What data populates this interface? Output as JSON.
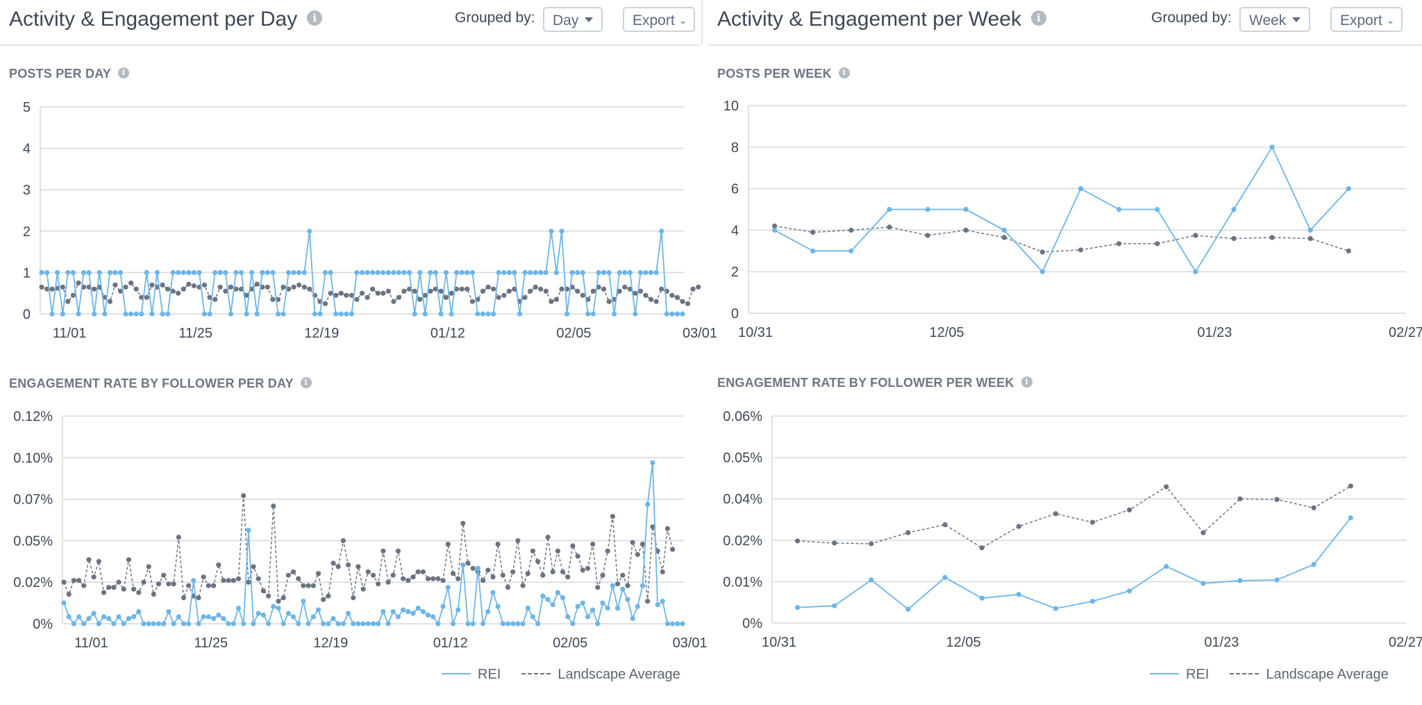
{
  "colors": {
    "rei": "#6db5e8",
    "average": "#6b7381",
    "grid": "#d5d9de",
    "axis_text": "#3d4756"
  },
  "icons": {
    "info": "info-icon",
    "caret": "caret-down-icon",
    "chevron": "chevron-down-icon"
  },
  "left": {
    "title": "Activity & Engagement per Day",
    "grouped_label": "Grouped by:",
    "grouped_value": "Day",
    "export_label": "Export"
  },
  "right": {
    "title": "Activity & Engagement per Week",
    "grouped_label": "Grouped by:",
    "grouped_value": "Week",
    "export_label": "Export"
  },
  "legend": {
    "rei": "REI",
    "average": "Landscape Average"
  },
  "chart_data": [
    {
      "id": "posts-day",
      "type": "line",
      "title": "POSTS PER DAY",
      "ylim": [
        0,
        5
      ],
      "yticks": [
        "0",
        "1",
        "2",
        "3",
        "4",
        "5"
      ],
      "ytick_values": [
        0,
        1,
        2,
        3,
        4,
        5
      ],
      "x_tick_labels": [
        "11/01",
        "11/25",
        "12/19",
        "01/12",
        "02/05",
        "03/01"
      ],
      "x_tick_index": [
        2,
        26,
        50,
        74,
        98,
        122
      ],
      "series": [
        {
          "name": "REI",
          "values": [
            1,
            1,
            0,
            1,
            0,
            1,
            1,
            0,
            1,
            1,
            0,
            1,
            0,
            1,
            1,
            1,
            0,
            0,
            0,
            0,
            1,
            0,
            1,
            0,
            0,
            1,
            1,
            1,
            1,
            1,
            1,
            0,
            0,
            1,
            1,
            1,
            0,
            1,
            1,
            0,
            1,
            0,
            1,
            1,
            1,
            0,
            0,
            1,
            1,
            1,
            1,
            2,
            0,
            0,
            1,
            1,
            0,
            0,
            0,
            0,
            1,
            1,
            1,
            1,
            1,
            1,
            1,
            1,
            1,
            1,
            1,
            0,
            1,
            0,
            1,
            1,
            0,
            1,
            0,
            1,
            1,
            1,
            1,
            0,
            0,
            0,
            0,
            1,
            1,
            1,
            1,
            0,
            1,
            1,
            1,
            1,
            1,
            2,
            1,
            2,
            0,
            1,
            1,
            1,
            0,
            0,
            1,
            1,
            1,
            0,
            1,
            1,
            1,
            0,
            1,
            1,
            1,
            1,
            2,
            0,
            0,
            0,
            0
          ]
        },
        {
          "name": "Landscape Average",
          "values": [
            0.65,
            0.6,
            0.6,
            0.62,
            0.65,
            0.3,
            0.45,
            0.75,
            0.65,
            0.65,
            0.6,
            0.65,
            0.4,
            0.3,
            0.7,
            0.55,
            0.65,
            0.75,
            0.6,
            0.4,
            0.4,
            0.7,
            0.65,
            0.7,
            0.6,
            0.55,
            0.5,
            0.6,
            0.72,
            0.68,
            0.65,
            0.7,
            0.4,
            0.35,
            0.65,
            0.55,
            0.65,
            0.6,
            0.6,
            0.45,
            0.6,
            0.72,
            0.65,
            0.65,
            0.35,
            0.35,
            0.65,
            0.6,
            0.65,
            0.7,
            0.65,
            0.6,
            0.45,
            0.3,
            0.25,
            0.5,
            0.45,
            0.5,
            0.45,
            0.45,
            0.35,
            0.5,
            0.4,
            0.6,
            0.5,
            0.5,
            0.55,
            0.3,
            0.4,
            0.55,
            0.6,
            0.55,
            0.35,
            0.45,
            0.55,
            0.6,
            0.55,
            0.4,
            0.5,
            0.6,
            0.6,
            0.6,
            0.3,
            0.35,
            0.55,
            0.65,
            0.6,
            0.4,
            0.45,
            0.55,
            0.6,
            0.3,
            0.4,
            0.55,
            0.65,
            0.6,
            0.55,
            0.3,
            0.35,
            0.6,
            0.6,
            0.65,
            0.55,
            0.45,
            0.35,
            0.55,
            0.65,
            0.6,
            0.3,
            0.35,
            0.55,
            0.65,
            0.6,
            0.5,
            0.55,
            0.45,
            0.35,
            0.3,
            0.6,
            0.55,
            0.45,
            0.4,
            0.3,
            0.25,
            0.6,
            0.65
          ]
        }
      ]
    },
    {
      "id": "posts-week",
      "type": "line",
      "title": "POSTS PER WEEK",
      "ylim": [
        0,
        10
      ],
      "yticks": [
        "0",
        "2",
        "4",
        "6",
        "8",
        "10"
      ],
      "ytick_values": [
        0,
        2,
        4,
        6,
        8,
        10
      ],
      "x_tick_labels": [
        "10/31",
        "12/05",
        "01/23",
        "02/27"
      ],
      "x_tick_pos": [
        0,
        5,
        12,
        17
      ],
      "x_range": [
        0,
        17
      ],
      "series": [
        {
          "name": "REI",
          "x": [
            0.5,
            1.5,
            2.5,
            3.5,
            4.5,
            5.5,
            6.5,
            7.5,
            8.5,
            9.5,
            10.5,
            11.5,
            12.5,
            13.5,
            14.5,
            15.5
          ],
          "values": [
            4,
            3,
            3,
            5,
            5,
            5,
            4,
            2,
            6,
            5,
            5,
            2,
            5,
            8,
            4,
            6
          ]
        },
        {
          "name": "Landscape Average",
          "x": [
            0.5,
            1.5,
            2.5,
            3.5,
            4.5,
            5.5,
            6.5,
            7.5,
            8.5,
            9.5,
            10.5,
            11.5,
            12.5,
            13.5,
            14.5,
            15.5
          ],
          "values": [
            4.2,
            3.9,
            4.0,
            4.15,
            3.75,
            4.0,
            3.65,
            2.95,
            3.05,
            3.35,
            3.35,
            3.75,
            3.6,
            3.65,
            3.6,
            3.0
          ]
        }
      ]
    },
    {
      "id": "eng-day",
      "type": "line",
      "title": "ENGAGEMENT RATE BY FOLLOWER PER DAY",
      "ylim": [
        0,
        0.12
      ],
      "yticks": [
        "0%",
        "0.02%",
        "0.05%",
        "0.07%",
        "0.10%",
        "0.12%"
      ],
      "ytick_values": [
        0,
        0.024,
        0.048,
        0.072,
        0.096,
        0.12
      ],
      "x_tick_labels": [
        "11/01",
        "11/25",
        "12/19",
        "01/12",
        "02/05",
        "03/01"
      ],
      "x_tick_index": [
        2,
        26,
        50,
        74,
        98,
        122
      ],
      "series": [
        {
          "name": "REI",
          "values": [
            0.012,
            0.004,
            0,
            0.004,
            0,
            0.003,
            0.006,
            0,
            0.004,
            0.003,
            0,
            0.004,
            0,
            0.003,
            0.004,
            0.007,
            0,
            0,
            0,
            0,
            0,
            0.007,
            0,
            0.004,
            0,
            0,
            0.025,
            0,
            0.004,
            0.004,
            0.003,
            0.005,
            0.003,
            0,
            0,
            0.009,
            0,
            0.054,
            0,
            0.006,
            0.005,
            0,
            0.01,
            0.009,
            0,
            0.006,
            0.004,
            0,
            0.013,
            0,
            0.004,
            0.008,
            0,
            0,
            0.003,
            0,
            0,
            0.006,
            0,
            0,
            0,
            0,
            0,
            0,
            0.007,
            0,
            0.007,
            0.004,
            0.008,
            0.007,
            0.006,
            0.009,
            0.007,
            0.005,
            0.004,
            0,
            0.01,
            0.021,
            0,
            0.008,
            0.034,
            0,
            0,
            0.032,
            0,
            0.007,
            0.018,
            0.01,
            0,
            0,
            0,
            0,
            0,
            0.009,
            0.004,
            0,
            0.016,
            0.014,
            0.011,
            0.018,
            0.015,
            0.004,
            0,
            0.01,
            0.012,
            0.004,
            0.008,
            0,
            0.012,
            0.009,
            0.022,
            0.009,
            0.02,
            0.014,
            0.003,
            0.01,
            0.022,
            0.069,
            0.093,
            0.011,
            0.013,
            0,
            0,
            0,
            0
          ]
        },
        {
          "name": "Landscape Average",
          "values": [
            0.024,
            0.017,
            0.025,
            0.025,
            0.022,
            0.037,
            0.027,
            0.036,
            0.018,
            0.021,
            0.021,
            0.024,
            0.02,
            0.037,
            0.02,
            0.018,
            0.024,
            0.033,
            0.017,
            0.023,
            0.028,
            0.023,
            0.023,
            0.05,
            0.015,
            0.022,
            0.016,
            0.015,
            0.027,
            0.022,
            0.022,
            0.034,
            0.025,
            0.025,
            0.025,
            0.026,
            0.074,
            0.024,
            0.033,
            0.026,
            0.019,
            0.016,
            0.068,
            0.013,
            0.015,
            0.028,
            0.03,
            0.026,
            0.022,
            0.022,
            0.022,
            0.029,
            0.014,
            0.016,
            0.035,
            0.033,
            0.048,
            0.034,
            0.015,
            0.033,
            0.02,
            0.03,
            0.028,
            0.023,
            0.042,
            0.024,
            0.028,
            0.042,
            0.026,
            0.025,
            0.027,
            0.03,
            0.03,
            0.026,
            0.026,
            0.026,
            0.025,
            0.046,
            0.029,
            0.026,
            0.058,
            0.035,
            0.032,
            0.03,
            0.025,
            0.031,
            0.027,
            0.046,
            0.028,
            0.021,
            0.03,
            0.048,
            0.022,
            0.029,
            0.042,
            0.036,
            0.028,
            0.05,
            0.03,
            0.042,
            0.03,
            0.027,
            0.045,
            0.039,
            0.031,
            0.032,
            0.046,
            0.021,
            0.028,
            0.042,
            0.062,
            0.023,
            0.028,
            0.022,
            0.047,
            0.04,
            0.046,
            0.013,
            0.056,
            0.042,
            0.03,
            0.055,
            0.043
          ]
        }
      ]
    },
    {
      "id": "eng-week",
      "type": "line",
      "title": "ENGAGEMENT RATE BY FOLLOWER PER WEEK",
      "ylim": [
        0,
        0.06
      ],
      "yticks": [
        "0%",
        "0.01%",
        "0.02%",
        "0.04%",
        "0.05%",
        "0.06%"
      ],
      "ytick_values": [
        0,
        0.012,
        0.024,
        0.036,
        0.048,
        0.06
      ],
      "x_tick_labels": [
        "10/31",
        "12/05",
        "01/23",
        "02/27"
      ],
      "x_tick_pos": [
        0,
        5,
        12,
        17
      ],
      "x_range": [
        0,
        17
      ],
      "series": [
        {
          "name": "REI",
          "x": [
            0.5,
            1.5,
            2.5,
            3.5,
            4.5,
            5.5,
            6.5,
            7.5,
            8.5,
            9.5,
            10.5,
            11.5,
            12.5,
            13.5,
            14.5,
            15.5
          ],
          "values": [
            0.0045,
            0.005,
            0.0125,
            0.004,
            0.0132,
            0.0072,
            0.0083,
            0.0042,
            0.0063,
            0.0093,
            0.0164,
            0.0115,
            0.0123,
            0.0125,
            0.017,
            0.0305
          ]
        },
        {
          "name": "Landscape Average",
          "x": [
            0.5,
            1.5,
            2.5,
            3.5,
            4.5,
            5.5,
            6.5,
            7.5,
            8.5,
            9.5,
            10.5,
            11.5,
            12.5,
            13.5,
            14.5,
            15.5
          ],
          "values": [
            0.0238,
            0.0232,
            0.023,
            0.0262,
            0.0285,
            0.0218,
            0.028,
            0.0317,
            0.0292,
            0.0328,
            0.0395,
            0.0262,
            0.036,
            0.0358,
            0.0334,
            0.0397
          ]
        }
      ]
    }
  ]
}
